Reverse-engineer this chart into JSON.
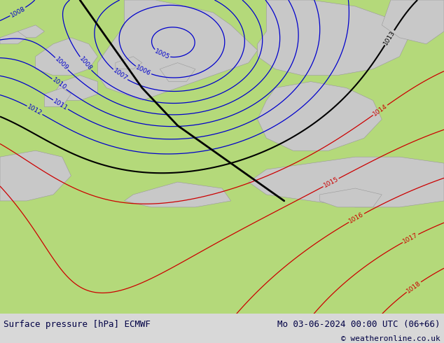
{
  "title_left": "Surface pressure [hPa] ECMWF",
  "title_right": "Mo 03-06-2024 00:00 UTC (06+66)",
  "copyright": "© weatheronline.co.uk",
  "bg_color": "#b4d97a",
  "gray_color": "#c8c8c8",
  "gray_edge_color": "#999999",
  "blue_color": "#0000cc",
  "red_color": "#cc0000",
  "black_color": "#000000",
  "label_fontsize": 6.5,
  "title_fontsize": 9
}
